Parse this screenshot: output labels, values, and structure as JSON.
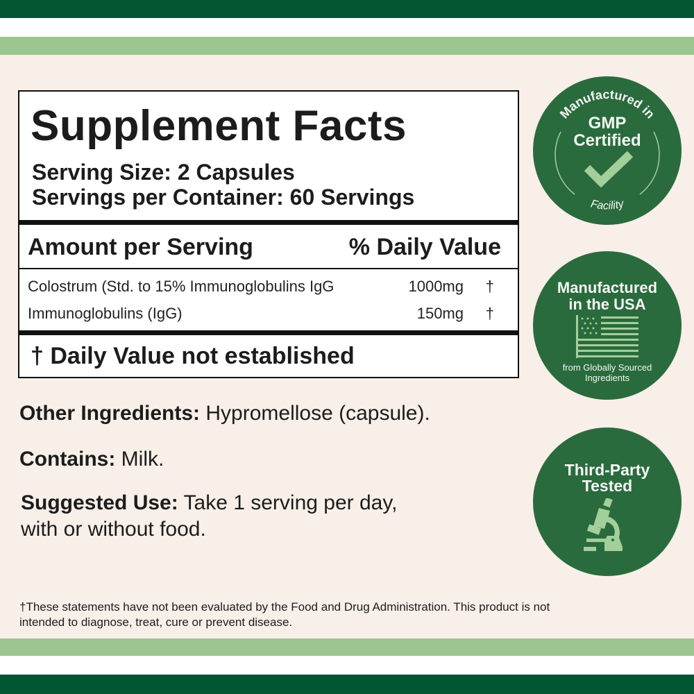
{
  "colors": {
    "dark_green": "#035632",
    "light_green": "#9cc690",
    "badge_green": "#2a6b3e",
    "icon_green": "#a3cf9a",
    "background": "#f7efe8"
  },
  "facts": {
    "title": "Supplement Facts",
    "serving_size": "Serving Size: 2 Capsules",
    "servings_per_container": "Servings per Container: 60 Servings",
    "amount_header": "Amount per Serving",
    "dv_header": "% Daily Value",
    "rows": [
      {
        "name": "Colostrum (Std. to 15% Immunoglobulins IgG",
        "amount": "1000mg",
        "dv": "†"
      },
      {
        "name": "Immunoglobulins (IgG)",
        "amount": "150mg",
        "dv": "†"
      }
    ],
    "footnote": "† Daily Value not established"
  },
  "other": {
    "other_label": "Other Ingredients:",
    "other_value": " Hypromellose (capsule).",
    "contains_label": "Contains:",
    "contains_value": " Milk.",
    "use_label": "Suggested Use:",
    "use_value_1": " Take 1 serving per day,",
    "use_value_2": "with or without food."
  },
  "disclaimer": {
    "line1": "†These statements have not been evaluated by the Food and Drug Administration. This product is not",
    "line2": "intended to diagnose, treat, cure or prevent disease."
  },
  "badges": {
    "gmp": {
      "arc_top": "Manufactured in",
      "line1": "GMP",
      "line2": "Certified",
      "arc_bottom": "Facility",
      "icon": "checkmark-icon"
    },
    "usa": {
      "line1": "Manufactured",
      "line2": "in the USA",
      "sub1": "from Globally Sourced",
      "sub2": "Ingredients",
      "icon": "us-flag-icon"
    },
    "tested": {
      "line1": "Third-Party",
      "line2": "Tested",
      "icon": "microscope-icon"
    }
  }
}
